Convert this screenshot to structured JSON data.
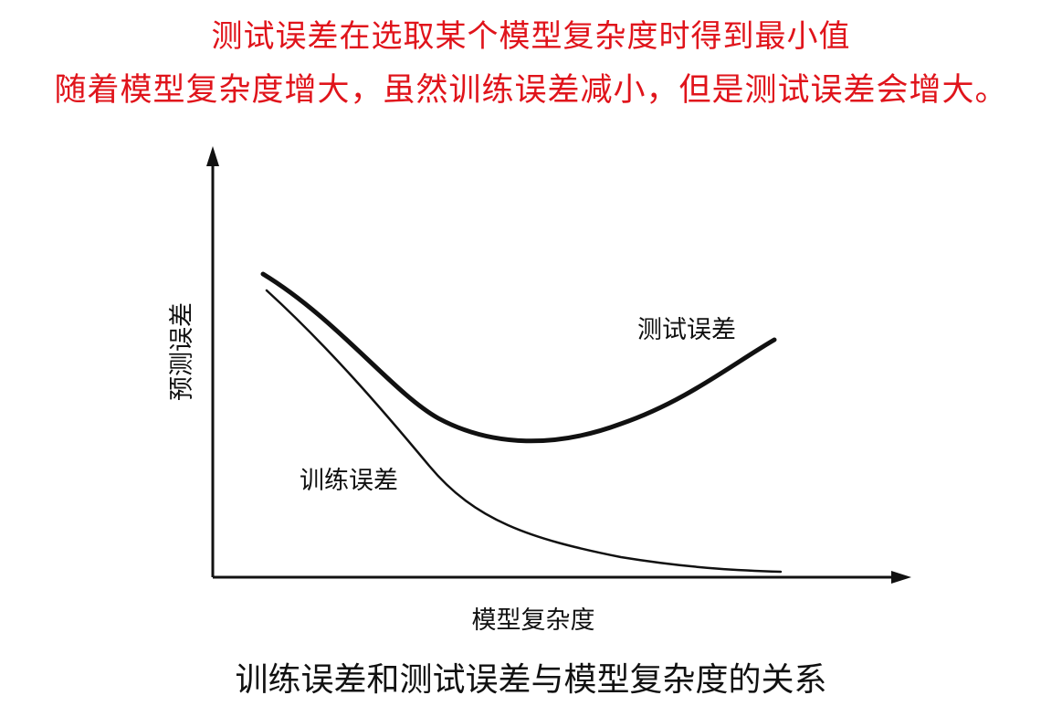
{
  "header": {
    "line1": "测试误差在选取某个模型复杂度时得到最小值",
    "line2": "随着模型复杂度增大，虽然训练误差减小，但是测试误差会增大。"
  },
  "figure": {
    "y_axis_label": "预测误差",
    "x_axis_label": "模型复杂度",
    "test_error_label": "测试误差",
    "train_error_label": "训练误差"
  },
  "caption": "训练误差和测试误差与模型复杂度的关系"
}
